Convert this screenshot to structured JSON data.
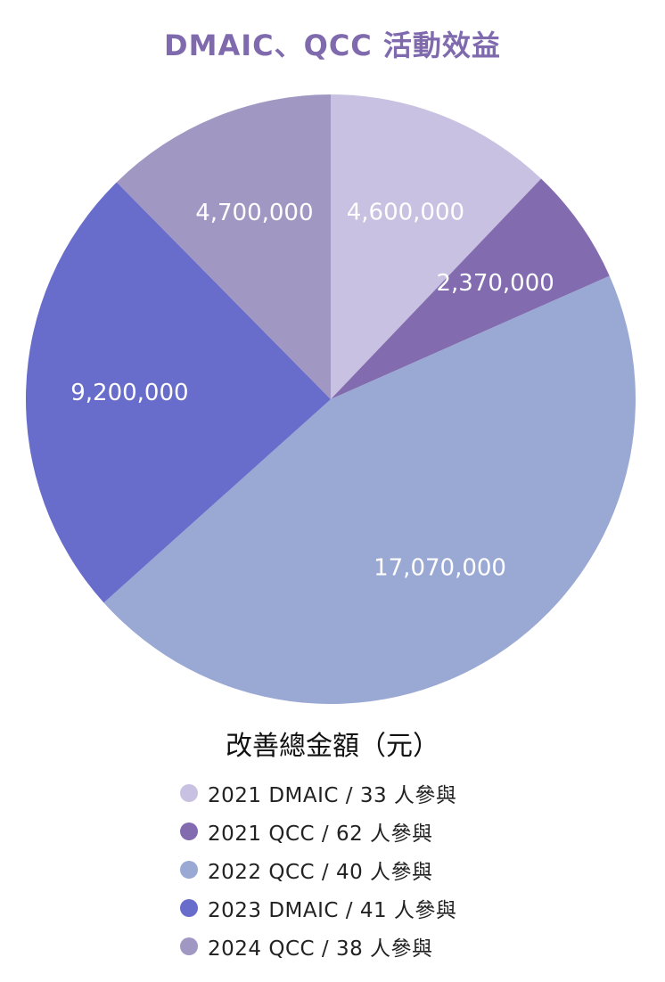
{
  "chart_data": {
    "type": "pie",
    "title": "DMAIC、QCC 活動效益",
    "legend_title": "改善總金額（元）",
    "legend_position": "bottom",
    "start_angle_deg": 0,
    "direction": "clockwise",
    "slices": [
      {
        "label": "2021 DMAIC / 33 人參與",
        "value": 4600000,
        "value_label": "4,600,000",
        "color": "#c8c1e1"
      },
      {
        "label": "2021 QCC / 62 人參與",
        "value": 2370000,
        "value_label": "2,370,000",
        "color": "#826caf"
      },
      {
        "label": "2022 QCC / 40 人參與",
        "value": 17070000,
        "value_label": "17,070,000",
        "color": "#9aa8d4"
      },
      {
        "label": "2023 DMAIC / 41 人參與",
        "value": 9200000,
        "value_label": "9,200,000",
        "color": "#686ccb"
      },
      {
        "label": "2024 QCC / 38 人參與",
        "value": 4700000,
        "value_label": "4,700,000",
        "color": "#a197c3"
      }
    ]
  }
}
